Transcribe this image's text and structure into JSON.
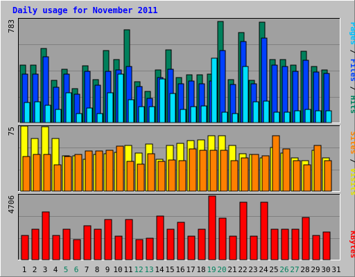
{
  "title": "Daily usage for November 2011",
  "colors": {
    "background": "#C0C0C0",
    "plot": "#A0A0A0",
    "title": "#0000FF",
    "hits": "#00805C",
    "files": "#0040FF",
    "pages": "#00E0FF",
    "visits": "#FFFF00",
    "sites": "#FF8000",
    "kbytes": "#FF0000",
    "weekday": "#000000",
    "weekend": "#00805C"
  },
  "legends": {
    "top": [
      {
        "text": "Pages",
        "color": "#00C0FF"
      },
      {
        "text": " / ",
        "color": "#000000"
      },
      {
        "text": "Files",
        "color": "#0040FF"
      },
      {
        "text": " / ",
        "color": "#000000"
      },
      {
        "text": "Hits",
        "color": "#00805C"
      }
    ],
    "middle": [
      {
        "text": "Sites",
        "color": "#FF8000"
      },
      {
        "text": " / ",
        "color": "#000000"
      },
      {
        "text": "Visits",
        "color": "#E0E000"
      },
      {
        "text": "",
        "color": "#000000"
      }
    ],
    "bottom": [
      {
        "text": "KBytes",
        "color": "#FF0000"
      }
    ]
  },
  "chart_data": [
    {
      "type": "bar",
      "panel": "top",
      "ymax_label": "783",
      "ylim": [
        0,
        783
      ],
      "categories": [
        "1",
        "2",
        "3",
        "4",
        "5",
        "6",
        "7",
        "8",
        "9",
        "10",
        "11",
        "12",
        "13",
        "14",
        "15",
        "16",
        "17",
        "18",
        "19",
        "20",
        "21",
        "22",
        "23",
        "24",
        "25",
        "26",
        "27",
        "28",
        "29",
        "30",
        "31"
      ],
      "weekend": [
        5,
        6,
        12,
        13,
        19,
        20,
        26,
        27
      ],
      "series": [
        {
          "name": "Hits",
          "values": [
            432,
            432,
            557,
            318,
            402,
            256,
            427,
            323,
            542,
            474,
            702,
            308,
            235,
            396,
            547,
            339,
            360,
            360,
            365,
            763,
            323,
            676,
            318,
            756,
            474,
            474,
            432,
            536,
            422,
            396,
            0
          ]
        },
        {
          "name": "Files",
          "values": [
            365,
            365,
            495,
            266,
            365,
            214,
            385,
            281,
            385,
            396,
            422,
            272,
            183,
            339,
            401,
            292,
            313,
            292,
            313,
            541,
            287,
            609,
            292,
            635,
            432,
            422,
            385,
            469,
            380,
            370,
            0
          ]
        },
        {
          "name": "Pages",
          "values": [
            151,
            157,
            130,
            100,
            224,
            68,
            109,
            68,
            224,
            367,
            172,
            120,
            120,
            328,
            219,
            99,
            120,
            125,
            484,
            78,
            68,
            422,
            156,
            161,
            78,
            78,
            89,
            99,
            88,
            89,
            0
          ]
        }
      ]
    },
    {
      "type": "bar",
      "panel": "middle",
      "ymax_label": "75",
      "ylim": [
        0,
        75
      ],
      "categories": [
        "1",
        "2",
        "3",
        "4",
        "5",
        "6",
        "7",
        "8",
        "9",
        "10",
        "11",
        "12",
        "13",
        "14",
        "15",
        "16",
        "17",
        "18",
        "19",
        "20",
        "21",
        "22",
        "23",
        "24",
        "25",
        "26",
        "27",
        "28",
        "29",
        "30",
        "31"
      ],
      "series": [
        {
          "name": "Visits",
          "values": [
            75,
            61,
            74,
            61,
            41,
            41,
            37,
            42,
            43,
            45,
            53,
            44,
            54,
            37,
            53,
            55,
            58,
            59,
            64,
            64,
            53,
            43,
            42,
            38,
            50,
            44,
            38,
            35,
            47,
            38,
            0
          ]
        },
        {
          "name": "Sites",
          "values": [
            40,
            42,
            42,
            30,
            40,
            42,
            46,
            46,
            47,
            52,
            34,
            31,
            43,
            34,
            36,
            35,
            49,
            47,
            47,
            47,
            35,
            38,
            42,
            41,
            64,
            49,
            35,
            30,
            53,
            35,
            0
          ]
        }
      ]
    },
    {
      "type": "bar",
      "panel": "bottom",
      "ymax_label": "4706",
      "ylim": [
        0,
        4706
      ],
      "categories": [
        "1",
        "2",
        "3",
        "4",
        "5",
        "6",
        "7",
        "8",
        "9",
        "10",
        "11",
        "12",
        "13",
        "14",
        "15",
        "16",
        "17",
        "18",
        "19",
        "20",
        "21",
        "22",
        "23",
        "24",
        "25",
        "26",
        "27",
        "28",
        "29",
        "30",
        "31"
      ],
      "series": [
        {
          "name": "KBytes",
          "values": [
            1770,
            2185,
            3450,
            1735,
            2180,
            1470,
            2475,
            2185,
            2888,
            1720,
            2880,
            1440,
            1530,
            3170,
            2200,
            2715,
            1710,
            2190,
            4610,
            3005,
            1725,
            4170,
            1725,
            4170,
            2210,
            2210,
            2210,
            3030,
            1730,
            1985,
            0
          ]
        }
      ]
    }
  ]
}
